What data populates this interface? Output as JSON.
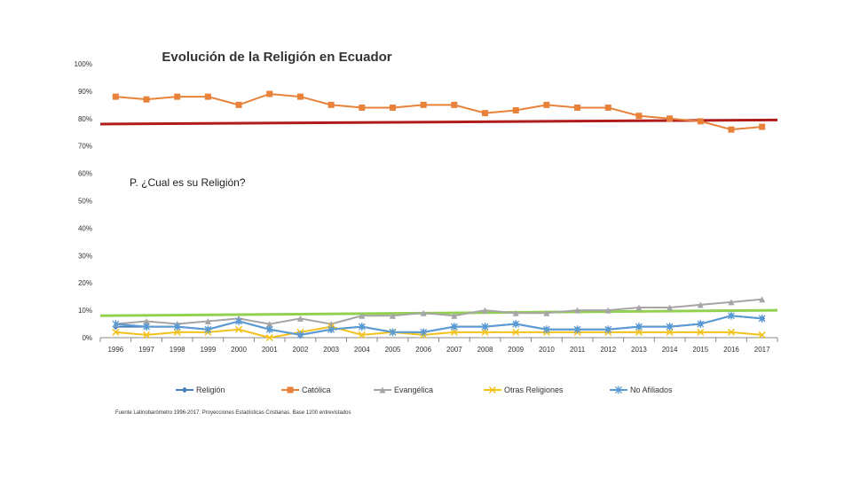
{
  "chart_data": {
    "type": "line",
    "title": "Evolución de la Religión en Ecuador",
    "annotation": "P. ¿Cual es su Religión?",
    "source": "Fuente Latinobarómetro 1996-2017. Proyecciones Estadísticas Cristianas. Base 1200 entrevistados",
    "y_ticks": [
      "0%",
      "10%",
      "20%",
      "30%",
      "40%",
      "50%",
      "60%",
      "70%",
      "80%",
      "90%",
      "100%"
    ],
    "ylim": [
      0,
      100
    ],
    "categories": [
      "1996",
      "1997",
      "1998",
      "1999",
      "2000",
      "2001",
      "2002",
      "2003",
      "2004",
      "2005",
      "2006",
      "2007",
      "2008",
      "2009",
      "2010",
      "2011",
      "2012",
      "2013",
      "2014",
      "2015",
      "2016",
      "2017"
    ],
    "series": [
      {
        "name": "Religión",
        "color": "#4a7ebb",
        "marker": "diamond",
        "values": [
          4,
          4,
          4,
          3,
          6,
          3,
          1,
          3,
          4,
          2,
          2,
          4,
          4,
          5,
          3,
          3,
          3,
          4,
          4,
          5,
          8,
          7
        ]
      },
      {
        "name": "Católica",
        "color": "#e8823a",
        "marker": "square",
        "values": [
          88,
          87,
          88,
          88,
          85,
          89,
          88,
          85,
          84,
          84,
          85,
          85,
          82,
          83,
          85,
          84,
          84,
          81,
          80,
          79,
          76,
          77
        ]
      },
      {
        "name": "Evangélica",
        "color": "#a5a5a5",
        "marker": "triangle",
        "values": [
          5,
          6,
          5,
          6,
          7,
          5,
          7,
          5,
          8,
          8,
          9,
          8,
          10,
          9,
          9,
          10,
          10,
          11,
          11,
          12,
          13,
          14
        ]
      },
      {
        "name": "Otras Religiones",
        "color": "#f2c21b",
        "marker": "x",
        "values": [
          2,
          1,
          2,
          2,
          3,
          0,
          2,
          4,
          1,
          2,
          1,
          2,
          2,
          2,
          2,
          2,
          2,
          2,
          2,
          2,
          2,
          1
        ]
      },
      {
        "name": "No Afiliados",
        "color": "#5b9bd5",
        "marker": "star",
        "values": [
          5,
          4,
          4,
          3,
          6,
          3,
          1,
          3,
          4,
          2,
          2,
          4,
          4,
          5,
          3,
          3,
          3,
          4,
          4,
          5,
          8,
          7
        ]
      }
    ],
    "trendlines": [
      {
        "of": "Católica",
        "color": "#b01c1c",
        "start": 78,
        "end": 79.5
      },
      {
        "of": "Evangélica",
        "color": "#92d050",
        "start": 8,
        "end": 10
      }
    ]
  }
}
